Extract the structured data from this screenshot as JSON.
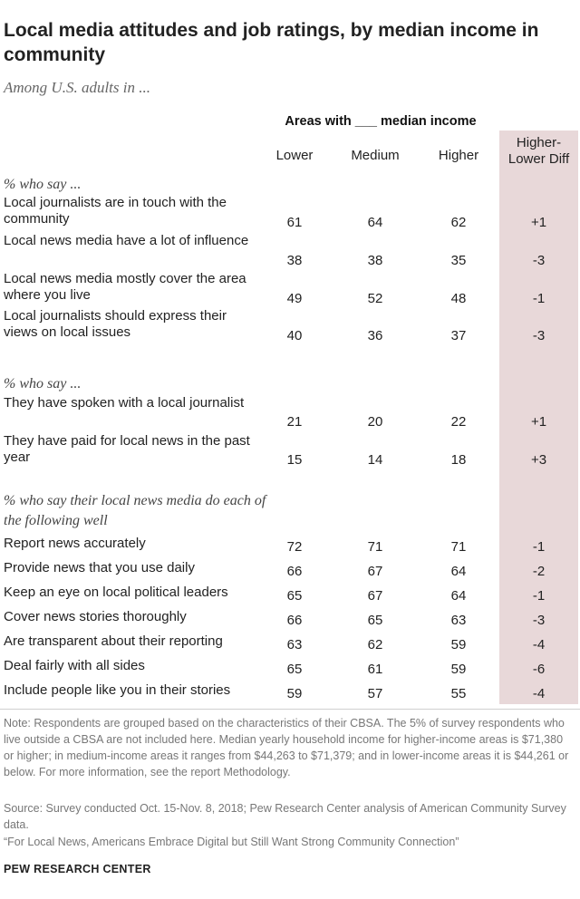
{
  "title": "Local media attitudes and job ratings, by median income in community",
  "subtitle": "Among U.S. adults in ...",
  "colors": {
    "diff_band": "#e8d8d9",
    "text": "#222222",
    "note_text": "#777777"
  },
  "chart_data": {
    "type": "table",
    "group_header": "Areas with ___ median income",
    "columns": [
      "Lower",
      "Medium",
      "Higher",
      "Higher-Lower Diff"
    ],
    "sections": [
      {
        "label": "% who say ...",
        "rows": [
          {
            "label": "Local journalists are in touch with the community",
            "values": [
              "61",
              "64",
              "62",
              "+1"
            ]
          },
          {
            "label": "Local news media have a lot of influence",
            "values": [
              "38",
              "38",
              "35",
              "-3"
            ]
          },
          {
            "label": "Local news media mostly cover the area where you live",
            "values": [
              "49",
              "52",
              "48",
              "-1"
            ]
          },
          {
            "label": "Local journalists should express their views on local issues",
            "values": [
              "40",
              "36",
              "37",
              "-3"
            ]
          }
        ]
      },
      {
        "label": "% who say ...",
        "rows": [
          {
            "label": "They have spoken with a local journalist",
            "values": [
              "21",
              "20",
              "22",
              "+1"
            ]
          },
          {
            "label": "They have paid for local news in the past year",
            "values": [
              "15",
              "14",
              "18",
              "+3"
            ]
          }
        ]
      },
      {
        "label": "% who say their local news media do each of the following well",
        "rows": [
          {
            "label": "Report news accurately",
            "values": [
              "72",
              "71",
              "71",
              "-1"
            ]
          },
          {
            "label": "Provide news that you use daily",
            "values": [
              "66",
              "67",
              "64",
              "-2"
            ]
          },
          {
            "label": "Keep an eye on local political leaders",
            "values": [
              "65",
              "67",
              "64",
              "-1"
            ]
          },
          {
            "label": "Cover news stories thoroughly",
            "values": [
              "66",
              "65",
              "63",
              "-3"
            ]
          },
          {
            "label": "Are transparent about their reporting",
            "values": [
              "63",
              "62",
              "59",
              "-4"
            ]
          },
          {
            "label": "Deal fairly with all sides",
            "values": [
              "65",
              "61",
              "59",
              "-6"
            ]
          },
          {
            "label": "Include people like you in their stories",
            "values": [
              "59",
              "57",
              "55",
              "-4"
            ]
          }
        ]
      }
    ]
  },
  "note": "Note: Respondents are grouped based on the characteristics of their CBSA. The 5% of survey respondents who live outside a CBSA are not included here. Median yearly household income for higher-income areas is $71,380 or higher; in medium-income areas it ranges from $44,263 to $71,379; and in lower-income areas it is $44,261 or below. For more information, see the report Methodology.",
  "source": "Source: Survey conducted Oct. 15-Nov. 8, 2018; Pew Research Center analysis of American Community Survey data.",
  "report": "“For Local News, Americans Embrace Digital but Still Want Strong Community Connection”",
  "brand": "PEW RESEARCH CENTER"
}
